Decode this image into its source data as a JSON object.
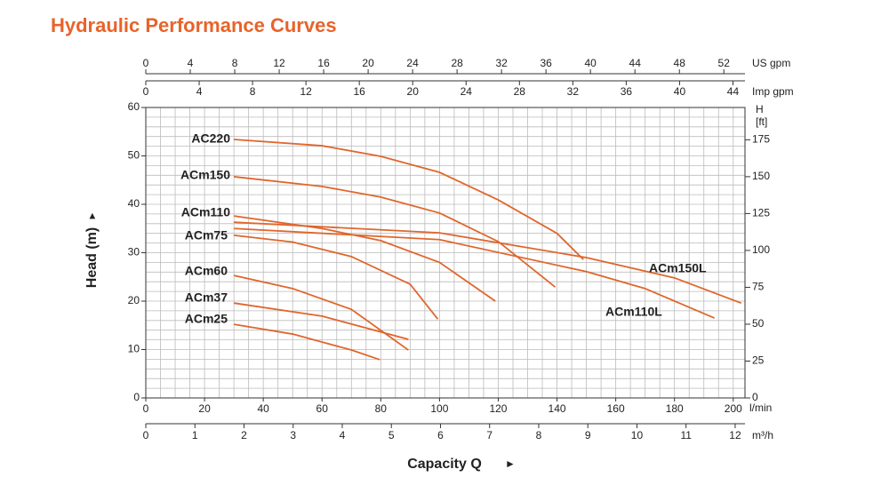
{
  "chart_data": {
    "type": "line",
    "title": "Hydraulic Performance Curves",
    "x_label": "l/min",
    "x_title": "Capacity Q",
    "y_label": "Head (m)",
    "y2_label_lines": [
      "H",
      "[ft]"
    ],
    "xlim": [
      0,
      204
    ],
    "xticks": [
      0,
      20,
      40,
      60,
      80,
      100,
      120,
      140,
      160,
      180,
      200
    ],
    "ylim": [
      0,
      60
    ],
    "yticks": [
      0,
      10,
      20,
      30,
      40,
      50,
      60
    ],
    "y2lim": [
      0,
      196.9
    ],
    "y2ticks": [
      0,
      25,
      50,
      75,
      100,
      125,
      150,
      175
    ],
    "xgrid": [
      0,
      5,
      10,
      15,
      20,
      25,
      30,
      35,
      40,
      45,
      50,
      55,
      60,
      65,
      70,
      75,
      80,
      85,
      90,
      95,
      100,
      105,
      110,
      115,
      120,
      125,
      130,
      135,
      140,
      145,
      150,
      155,
      160,
      165,
      170,
      175,
      180,
      185,
      190,
      195,
      200
    ],
    "ygrid": [
      0,
      2,
      4,
      6,
      8,
      10,
      12,
      14,
      16,
      18,
      20,
      22,
      24,
      26,
      28,
      30,
      32,
      34,
      36,
      38,
      40,
      42,
      44,
      46,
      48,
      50,
      52,
      54,
      56,
      58,
      60
    ],
    "x_axes": [
      {
        "label": "US gpm",
        "side": "top",
        "lim": [
          0,
          53.9
        ],
        "ticks": [
          0,
          4,
          8,
          12,
          16,
          20,
          24,
          28,
          32,
          36,
          40,
          44,
          48,
          52
        ]
      },
      {
        "label": "Imp gpm",
        "side": "top",
        "lim": [
          0,
          44.9
        ],
        "ticks": [
          0,
          4,
          8,
          12,
          16,
          20,
          24,
          28,
          32,
          36,
          40,
          44
        ]
      },
      {
        "label": "m³/h",
        "side": "bottom",
        "lim": [
          0,
          12.2
        ],
        "ticks": [
          0,
          1,
          2,
          3,
          4,
          5,
          6,
          7,
          8,
          9,
          10,
          11,
          12
        ]
      }
    ],
    "series": [
      {
        "name": "AC220",
        "color": "#e0662c",
        "x": [
          30,
          60,
          80,
          100,
          120,
          140,
          149
        ],
        "values": [
          53.4,
          52.1,
          49.9,
          46.6,
          40.9,
          34.0,
          28.6
        ]
      },
      {
        "name": "ACm150",
        "color": "#e0662c",
        "x": [
          30,
          60,
          80,
          100,
          120,
          139.4
        ],
        "values": [
          45.7,
          43.7,
          41.5,
          38.2,
          32.3,
          22.9
        ]
      },
      {
        "name": "ACm110",
        "color": "#e0662c",
        "x": [
          30,
          60,
          80,
          100,
          119
        ],
        "values": [
          37.6,
          35.0,
          32.5,
          28.0,
          20.0
        ]
      },
      {
        "name": "ACm75",
        "color": "#e0662c",
        "x": [
          30,
          50,
          70,
          90,
          99.4
        ],
        "values": [
          33.6,
          32.2,
          29.2,
          23.5,
          16.3
        ]
      },
      {
        "name": "ACm150L",
        "color": "#e0662c",
        "x": [
          30,
          100,
          150,
          180,
          202.7
        ],
        "values": [
          36.3,
          34.1,
          29.0,
          24.8,
          19.6
        ]
      },
      {
        "name": "ACm110L",
        "color": "#e0662c",
        "x": [
          30,
          100,
          150,
          170,
          193.6
        ],
        "values": [
          35.0,
          32.7,
          26.1,
          22.6,
          16.5
        ]
      },
      {
        "name": "ACm60",
        "color": "#e0662c",
        "x": [
          30,
          50,
          70,
          89.4
        ],
        "values": [
          25.3,
          22.6,
          18.3,
          9.9
        ]
      },
      {
        "name": "ACm37",
        "color": "#e0662c",
        "x": [
          30,
          60,
          89.4
        ],
        "values": [
          19.6,
          16.9,
          12.1
        ]
      },
      {
        "name": "ACm25",
        "color": "#e0662c",
        "x": [
          30,
          50,
          70,
          79.7
        ],
        "values": [
          15.2,
          13.2,
          9.9,
          7.9
        ]
      }
    ]
  }
}
